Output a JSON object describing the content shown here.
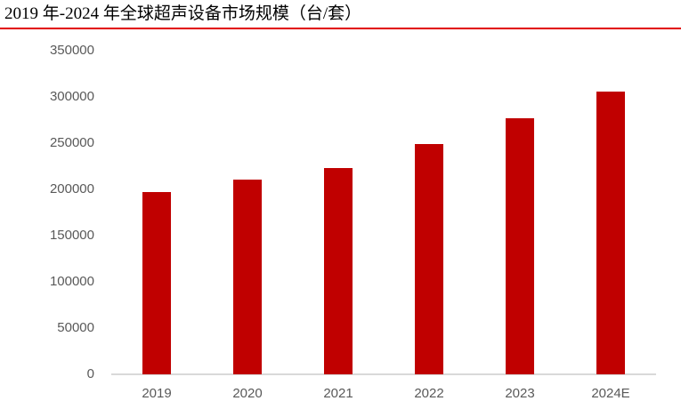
{
  "chart_data": {
    "type": "bar",
    "title": "2019 年-2024 年全球超声设备市场规模（台/套）",
    "unit": "台/套",
    "categories": [
      "2019",
      "2020",
      "2021",
      "2022",
      "2023",
      "2024E"
    ],
    "values": [
      197000,
      211000,
      223000,
      249000,
      277000,
      306000
    ],
    "xlabel": "",
    "ylabel": "",
    "ylim": [
      0,
      350000
    ],
    "y_ticks": [
      0,
      50000,
      100000,
      150000,
      200000,
      250000,
      300000,
      350000
    ],
    "grid": false,
    "legend_position": "none"
  },
  "colors": {
    "bar": "#C00000",
    "title_rule": "#E10000",
    "axis_line": "#D9D9D9",
    "tick_text": "#595959",
    "title_text": "#000000",
    "background": "#FFFFFF"
  }
}
